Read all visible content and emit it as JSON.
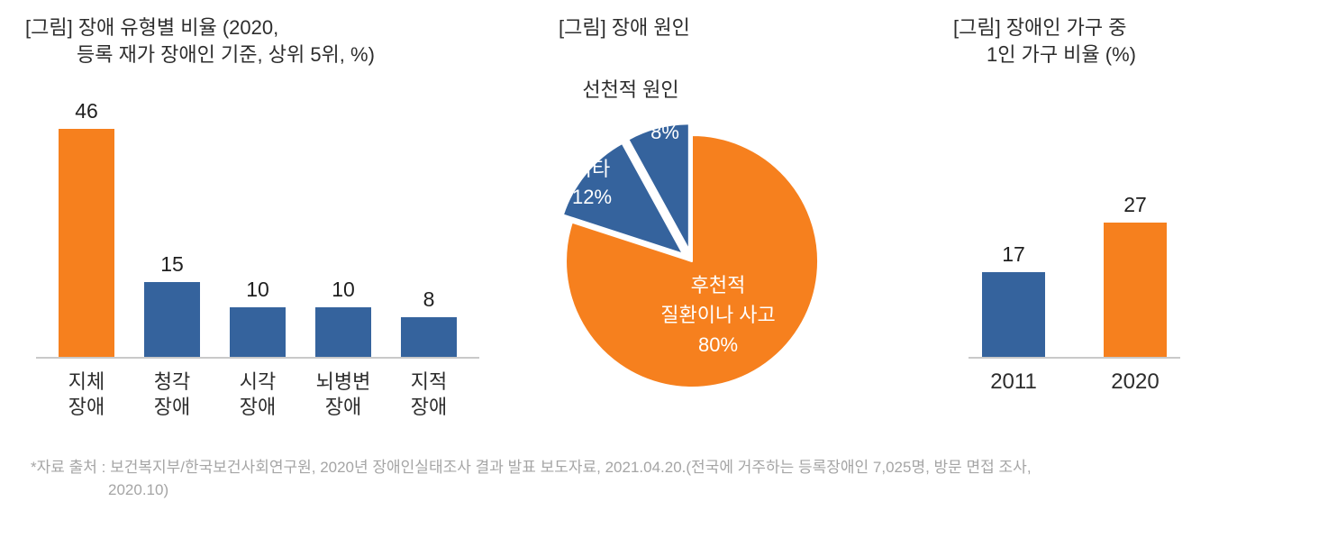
{
  "colors": {
    "orange": "#F6801E",
    "blue": "#35639D",
    "axis": "#C9C9C9",
    "text": "#2D2D2D",
    "footer_text": "#A5A5A5",
    "pie_text": "#FFFFFF"
  },
  "chart_data": [
    {
      "type": "bar",
      "title_lines": [
        "[그림] 장애 유형별 비율 (2020,",
        "등록 재가 장애인 기준, 상위 5위, %)"
      ],
      "categories": [
        "지체\n장애",
        "청각\n장애",
        "시각\n장애",
        "뇌병변\n장애",
        "지적\n장애"
      ],
      "values": [
        46,
        15,
        10,
        10,
        8
      ],
      "bar_colors": [
        "orange",
        "blue",
        "blue",
        "blue",
        "blue"
      ],
      "ylim": [
        0,
        50
      ],
      "grid": false,
      "legend": false
    },
    {
      "type": "pie",
      "title_lines": [
        "[그림] 장애 원인"
      ],
      "slices": [
        {
          "label": "후천적 질환이나 사고",
          "label_lines": [
            "후천적",
            "질환이나 사고"
          ],
          "value": 80,
          "pct_label": "80%",
          "color": "orange",
          "explode": 0
        },
        {
          "label": "기타",
          "value": 12,
          "pct_label": "12%",
          "color": "blue",
          "explode": 13
        },
        {
          "label": "선천적 원인",
          "value": 8,
          "pct_label": "8%",
          "color": "blue",
          "explode": 13
        }
      ],
      "legend": false
    },
    {
      "type": "bar",
      "title_lines": [
        "[그림] 장애인 가구 중",
        "1인 가구 비율 (%)"
      ],
      "categories": [
        "2011",
        "2020"
      ],
      "values": [
        17,
        27
      ],
      "bar_colors": [
        "blue",
        "orange"
      ],
      "ylim": [
        0,
        30
      ],
      "grid": false,
      "legend": false
    }
  ],
  "footer": {
    "line1": "*자료 출처 : 보건복지부/한국보건사회연구원, 2020년 장애인실태조사 결과 발표 보도자료, 2021.04.20.(전국에 거주하는 등록장애인 7,025명, 방문 면접 조사,",
    "line2": "2020.10)"
  }
}
